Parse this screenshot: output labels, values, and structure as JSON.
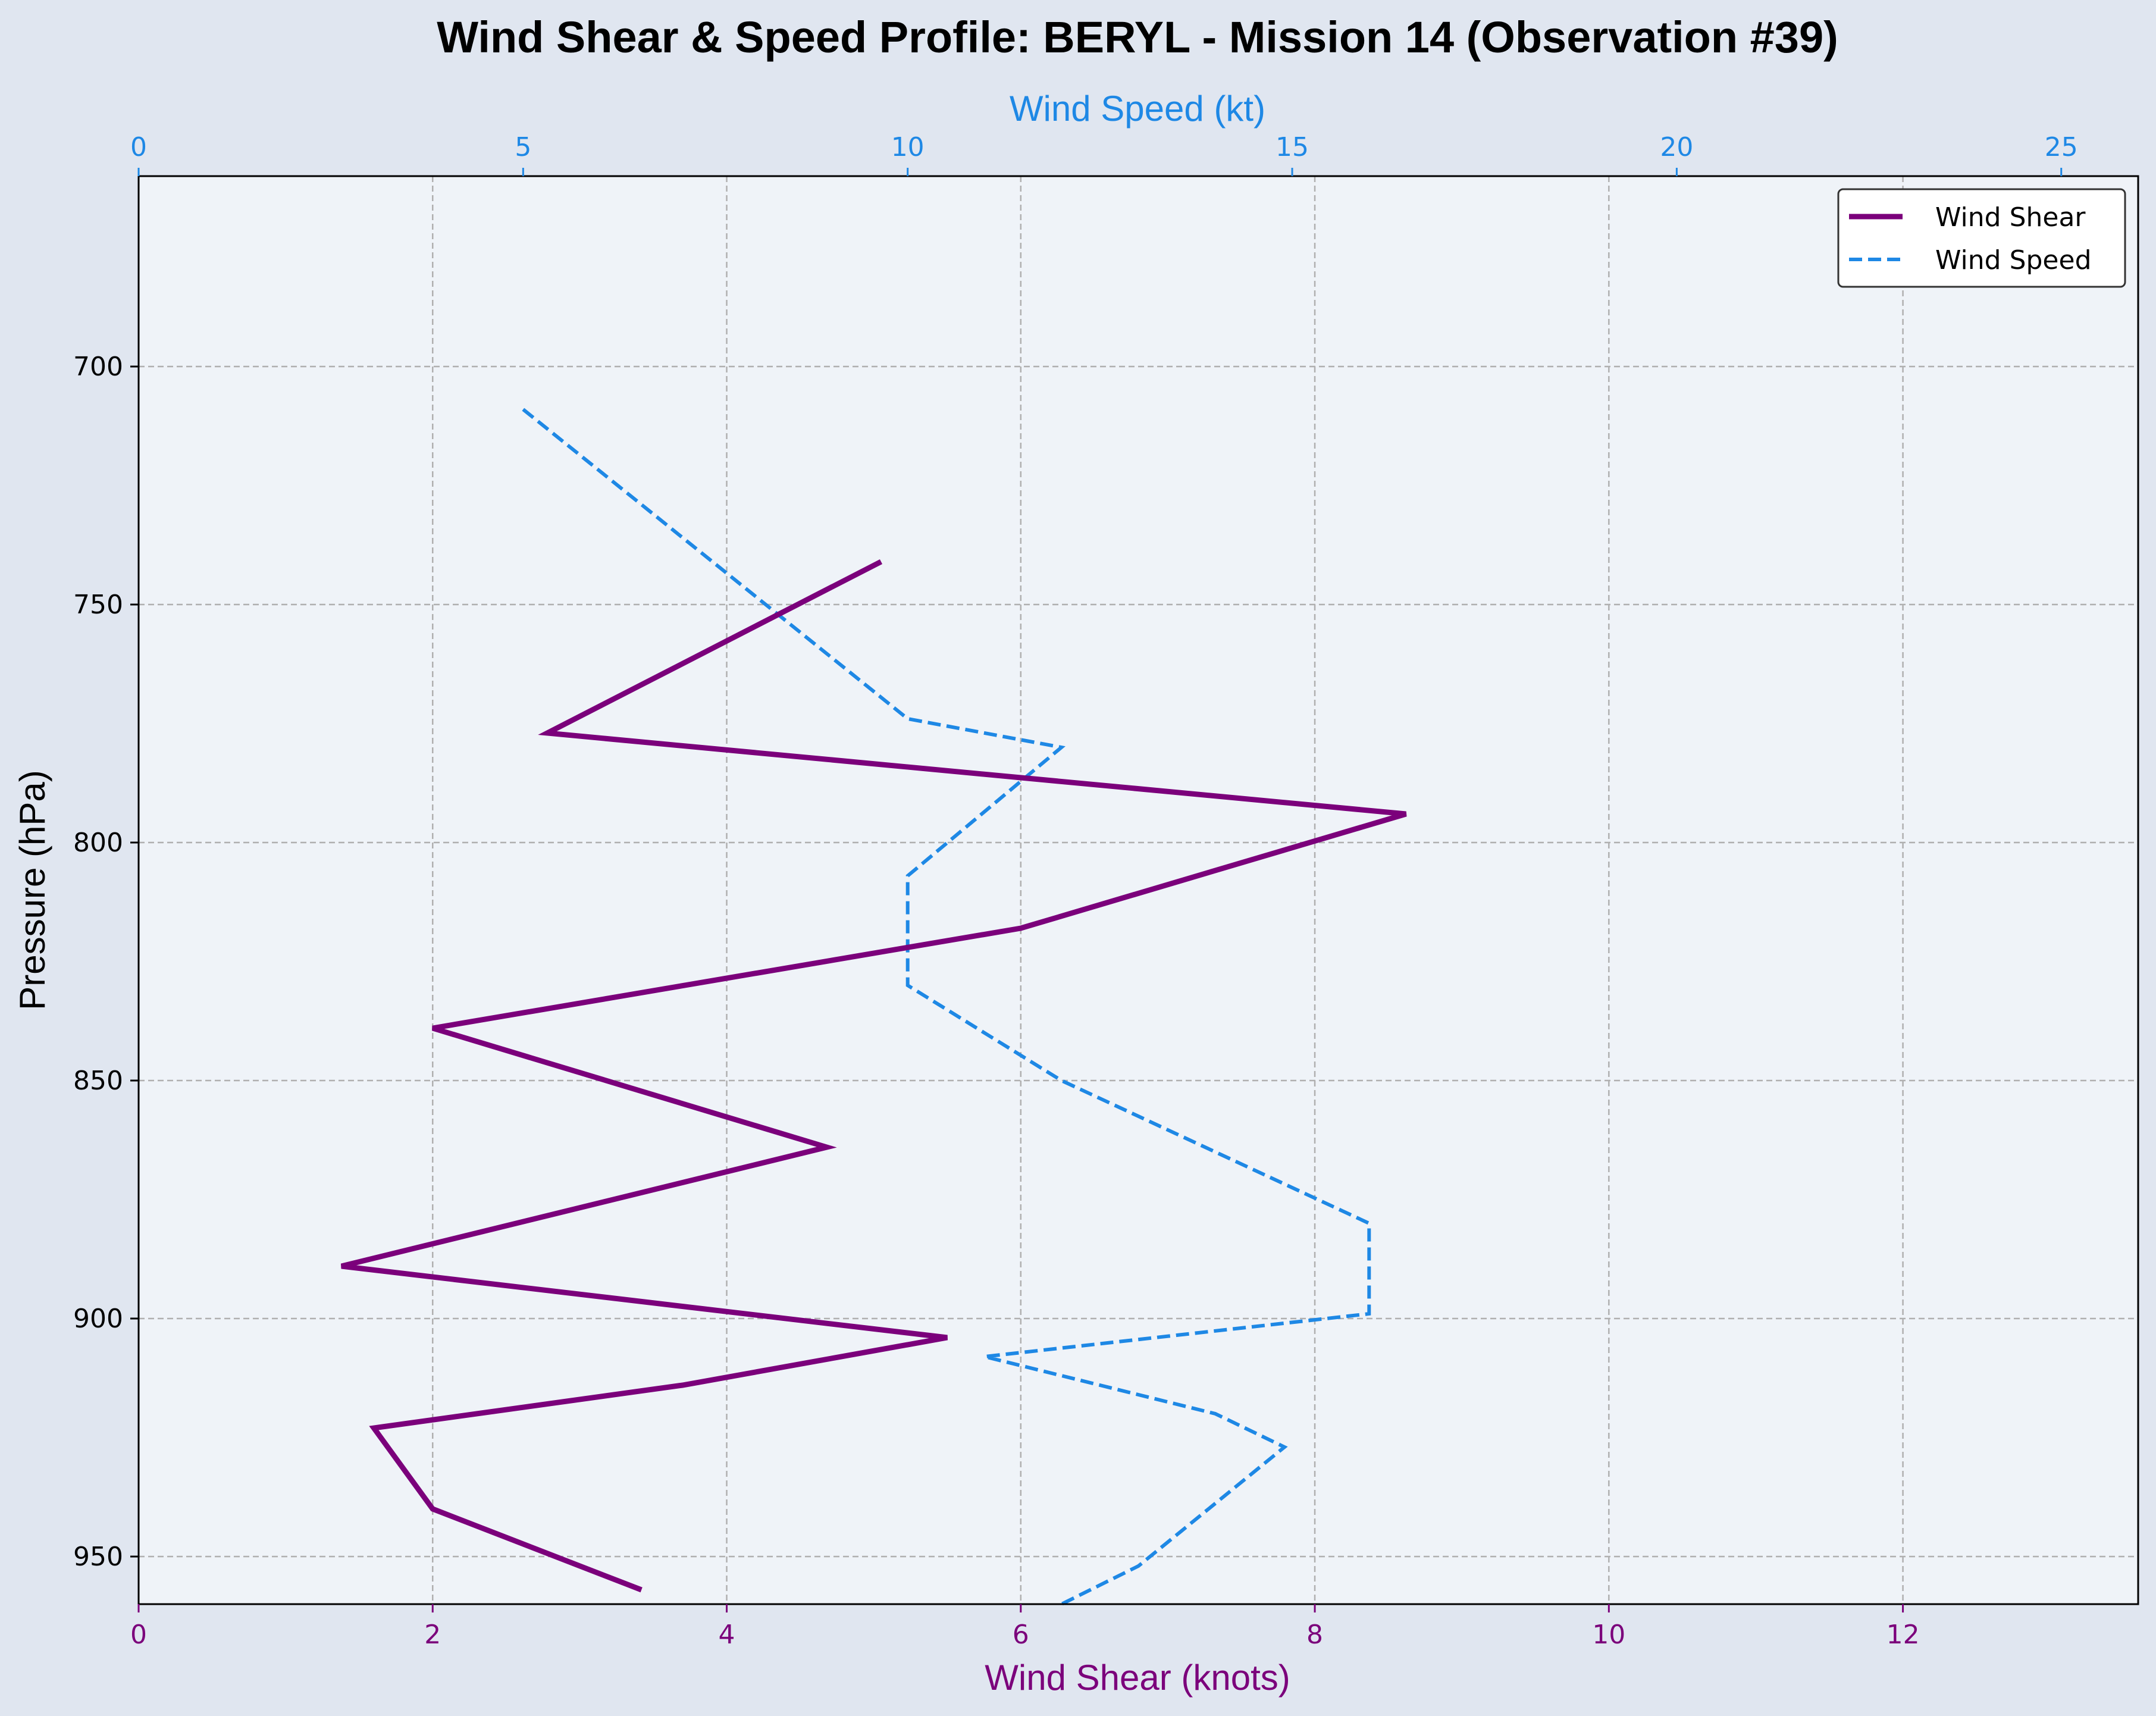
{
  "chart_data": {
    "type": "line",
    "title": "Wind Shear & Speed Profile: BERYL - Mission 14 (Observation #39)",
    "ylabel": "Pressure (hPa)",
    "xlabel_bottom": "Wind Shear (knots)",
    "xlabel_top": "Wind Speed (kt)",
    "ylim": [
      960,
      660
    ],
    "yticks": [
      700,
      750,
      800,
      850,
      900,
      950
    ],
    "xlim_bottom": [
      0,
      13.6
    ],
    "xticks_bottom": [
      0,
      2,
      4,
      6,
      8,
      10,
      12
    ],
    "xlim_top": [
      0,
      26
    ],
    "xticks_top": [
      0,
      5,
      10,
      15,
      20,
      25
    ],
    "grid": true,
    "legend_position": "top-right",
    "colors": {
      "shear": "#7b007b",
      "speed": "#1e88e5",
      "plot_bg": "#eff3f8",
      "figure_bg": "#e0e6f0",
      "grid": "#b0b0b0"
    },
    "series": [
      {
        "name": "Wind Shear",
        "axis": "bottom",
        "style": "solid",
        "x": [
          5.05,
          2.78,
          8.62,
          6.0,
          2.0,
          4.68,
          1.38,
          5.5,
          3.7,
          1.6,
          2.0,
          3.42
        ],
        "y": [
          741,
          777,
          794,
          818,
          839,
          864,
          889,
          904,
          914,
          923,
          940,
          957
        ]
      },
      {
        "name": "Wind Speed",
        "axis": "top",
        "style": "dashed",
        "x": [
          5.0,
          10.0,
          12.0,
          10.0,
          10.0,
          12.0,
          16.0,
          16.0,
          11.0,
          14.0,
          14.9,
          13.0,
          12.0
        ],
        "y": [
          709,
          774,
          780,
          807,
          830,
          850,
          880,
          899,
          908,
          920,
          927,
          952,
          960
        ]
      }
    ]
  }
}
